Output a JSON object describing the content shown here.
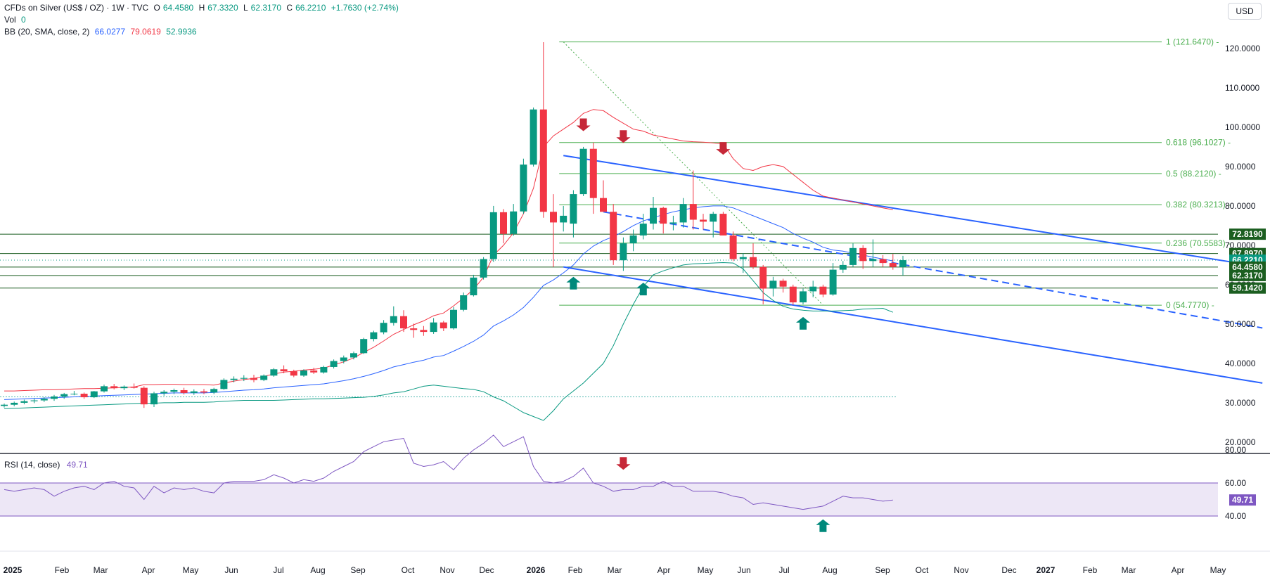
{
  "header": {
    "symbol": "CFDs on Silver (US$ / OZ) · 1W · TVC",
    "o_label": "O",
    "o": "64.4580",
    "h_label": "H",
    "h": "67.3320",
    "l_label": "L",
    "l": "62.3170",
    "c_label": "C",
    "c": "66.2210",
    "change": "+1.7630 (+2.74%)",
    "vol_label": "Vol",
    "vol": "0",
    "bb_label": "BB (20, SMA, close, 2)",
    "bb_basis": "66.0277",
    "bb_upper": "79.0619",
    "bb_lower": "52.9936",
    "currency_button": "USD"
  },
  "colors": {
    "up": "#089981",
    "down": "#f23645",
    "bb_basis": "#2962ff",
    "bb_upper": "#f23645",
    "bb_lower": "#089981",
    "channel": "#2962ff",
    "fib": "#4caf50",
    "rsi": "#7e57c2",
    "rsi_band": "#ede7f6",
    "level_box": "#1b5e20"
  },
  "chart_data": [
    {
      "type": "candlestick",
      "yaxis_ticks": [
        120,
        110,
        100,
        90,
        80,
        70,
        60,
        50,
        40,
        30,
        20
      ],
      "ylim": [
        15,
        125
      ],
      "x_ticks": [
        "2025",
        "Feb",
        "Mar",
        "Apr",
        "May",
        "Jun",
        "Jul",
        "Aug",
        "Sep",
        "Oct",
        "Nov",
        "Dec",
        "2026",
        "Feb",
        "Mar",
        "Apr",
        "May",
        "Jun",
        "Jul",
        "Aug",
        "Sep",
        "Oct",
        "Nov",
        "Dec",
        "2027",
        "Feb",
        "Mar",
        "Apr",
        "May"
      ],
      "candles": [
        {
          "o": 29.2,
          "h": 29.8,
          "l": 28.8,
          "c": 29.5
        },
        {
          "o": 29.5,
          "h": 30.3,
          "l": 29.1,
          "c": 30.0
        },
        {
          "o": 30.0,
          "h": 30.8,
          "l": 29.6,
          "c": 30.4
        },
        {
          "o": 30.4,
          "h": 31.1,
          "l": 29.9,
          "c": 30.6
        },
        {
          "o": 30.6,
          "h": 31.4,
          "l": 30.2,
          "c": 31.0
        },
        {
          "o": 31.0,
          "h": 32.0,
          "l": 30.5,
          "c": 31.6
        },
        {
          "o": 31.6,
          "h": 32.5,
          "l": 31.0,
          "c": 32.2
        },
        {
          "o": 32.2,
          "h": 33.0,
          "l": 31.9,
          "c": 32.3
        },
        {
          "o": 32.3,
          "h": 32.6,
          "l": 31.0,
          "c": 31.4
        },
        {
          "o": 31.4,
          "h": 33.0,
          "l": 31.2,
          "c": 32.9
        },
        {
          "o": 32.9,
          "h": 34.6,
          "l": 32.6,
          "c": 34.2
        },
        {
          "o": 34.2,
          "h": 34.8,
          "l": 33.4,
          "c": 33.7
        },
        {
          "o": 33.7,
          "h": 34.4,
          "l": 33.2,
          "c": 34.1
        },
        {
          "o": 34.1,
          "h": 34.9,
          "l": 33.6,
          "c": 33.8
        },
        {
          "o": 33.8,
          "h": 34.2,
          "l": 28.7,
          "c": 29.6
        },
        {
          "o": 29.6,
          "h": 32.8,
          "l": 28.9,
          "c": 32.4
        },
        {
          "o": 32.4,
          "h": 33.2,
          "l": 31.8,
          "c": 32.8
        },
        {
          "o": 32.8,
          "h": 33.6,
          "l": 32.2,
          "c": 33.2
        },
        {
          "o": 33.2,
          "h": 33.8,
          "l": 32.1,
          "c": 32.5
        },
        {
          "o": 32.5,
          "h": 33.4,
          "l": 32.0,
          "c": 32.9
        },
        {
          "o": 32.9,
          "h": 33.5,
          "l": 32.2,
          "c": 32.6
        },
        {
          "o": 32.6,
          "h": 33.8,
          "l": 32.2,
          "c": 33.5
        },
        {
          "o": 33.5,
          "h": 36.2,
          "l": 33.3,
          "c": 35.8
        },
        {
          "o": 35.8,
          "h": 36.7,
          "l": 35.2,
          "c": 36.1
        },
        {
          "o": 36.1,
          "h": 37.0,
          "l": 35.5,
          "c": 36.3
        },
        {
          "o": 36.3,
          "h": 37.1,
          "l": 35.2,
          "c": 35.8
        },
        {
          "o": 35.8,
          "h": 37.2,
          "l": 35.5,
          "c": 36.9
        },
        {
          "o": 36.9,
          "h": 38.8,
          "l": 36.6,
          "c": 38.5
        },
        {
          "o": 38.5,
          "h": 39.5,
          "l": 37.5,
          "c": 38.0
        },
        {
          "o": 38.0,
          "h": 38.4,
          "l": 36.5,
          "c": 36.9
        },
        {
          "o": 36.9,
          "h": 38.5,
          "l": 36.6,
          "c": 38.2
        },
        {
          "o": 38.2,
          "h": 38.9,
          "l": 37.3,
          "c": 37.7
        },
        {
          "o": 37.7,
          "h": 39.4,
          "l": 37.4,
          "c": 39.1
        },
        {
          "o": 39.1,
          "h": 41.0,
          "l": 38.7,
          "c": 40.6
        },
        {
          "o": 40.6,
          "h": 42.0,
          "l": 40.0,
          "c": 41.5
        },
        {
          "o": 41.5,
          "h": 43.0,
          "l": 41.0,
          "c": 42.6
        },
        {
          "o": 42.6,
          "h": 46.5,
          "l": 42.4,
          "c": 46.2
        },
        {
          "o": 46.2,
          "h": 48.3,
          "l": 45.6,
          "c": 47.9
        },
        {
          "o": 47.9,
          "h": 51.0,
          "l": 47.4,
          "c": 50.3
        },
        {
          "o": 50.3,
          "h": 54.5,
          "l": 49.6,
          "c": 52.0
        },
        {
          "o": 52.0,
          "h": 53.5,
          "l": 48.0,
          "c": 48.9
        },
        {
          "o": 48.9,
          "h": 50.1,
          "l": 46.5,
          "c": 48.5
        },
        {
          "o": 48.5,
          "h": 49.5,
          "l": 47.0,
          "c": 48.0
        },
        {
          "o": 48.0,
          "h": 51.5,
          "l": 47.5,
          "c": 50.4
        },
        {
          "o": 50.4,
          "h": 50.8,
          "l": 48.2,
          "c": 48.9
        },
        {
          "o": 48.9,
          "h": 54.3,
          "l": 48.6,
          "c": 53.6
        },
        {
          "o": 53.6,
          "h": 58.0,
          "l": 53.2,
          "c": 57.3
        },
        {
          "o": 57.3,
          "h": 62.5,
          "l": 57.0,
          "c": 61.8
        },
        {
          "o": 61.8,
          "h": 67.0,
          "l": 61.3,
          "c": 66.5
        },
        {
          "o": 66.5,
          "h": 80.0,
          "l": 65.8,
          "c": 78.4
        },
        {
          "o": 78.4,
          "h": 79.2,
          "l": 70.5,
          "c": 72.9
        },
        {
          "o": 72.9,
          "h": 80.5,
          "l": 72.4,
          "c": 78.6
        },
        {
          "o": 78.6,
          "h": 92.0,
          "l": 78.0,
          "c": 90.5
        },
        {
          "o": 90.5,
          "h": 105.0,
          "l": 90.0,
          "c": 104.5
        },
        {
          "o": 104.5,
          "h": 121.6,
          "l": 77.0,
          "c": 78.5
        },
        {
          "o": 78.5,
          "h": 83.0,
          "l": 64.5,
          "c": 75.8
        },
        {
          "o": 75.8,
          "h": 80.0,
          "l": 73.5,
          "c": 77.5
        },
        {
          "o": 75.5,
          "h": 84.0,
          "l": 72.0,
          "c": 83.0
        },
        {
          "o": 83.0,
          "h": 95.0,
          "l": 82.5,
          "c": 94.5
        },
        {
          "o": 94.5,
          "h": 96.1,
          "l": 78.0,
          "c": 82.0
        },
        {
          "o": 82.0,
          "h": 86.5,
          "l": 79.5,
          "c": 78.5
        },
        {
          "o": 78.5,
          "h": 80.5,
          "l": 65.0,
          "c": 66.2
        },
        {
          "o": 66.2,
          "h": 72.0,
          "l": 63.5,
          "c": 70.5
        },
        {
          "o": 70.5,
          "h": 74.0,
          "l": 68.5,
          "c": 72.5
        },
        {
          "o": 72.5,
          "h": 78.0,
          "l": 71.5,
          "c": 75.5
        },
        {
          "o": 75.5,
          "h": 82.3,
          "l": 74.0,
          "c": 79.5
        },
        {
          "o": 79.5,
          "h": 79.8,
          "l": 73.0,
          "c": 75.5
        },
        {
          "o": 75.5,
          "h": 77.5,
          "l": 73.8,
          "c": 75.8
        },
        {
          "o": 75.8,
          "h": 82.0,
          "l": 74.5,
          "c": 80.5
        },
        {
          "o": 80.5,
          "h": 89.0,
          "l": 74.0,
          "c": 76.5
        },
        {
          "o": 76.5,
          "h": 78.0,
          "l": 74.0,
          "c": 76.0
        },
        {
          "o": 76.0,
          "h": 78.5,
          "l": 72.0,
          "c": 78.0
        },
        {
          "o": 78.0,
          "h": 78.5,
          "l": 73.0,
          "c": 72.5
        },
        {
          "o": 72.5,
          "h": 73.5,
          "l": 66.0,
          "c": 66.5
        },
        {
          "o": 66.5,
          "h": 68.0,
          "l": 63.0,
          "c": 67.0
        },
        {
          "o": 67.0,
          "h": 70.5,
          "l": 64.0,
          "c": 64.5
        },
        {
          "o": 64.5,
          "h": 65.0,
          "l": 55.0,
          "c": 59.0
        },
        {
          "o": 59.0,
          "h": 62.0,
          "l": 57.0,
          "c": 61.0
        },
        {
          "o": 61.0,
          "h": 61.5,
          "l": 58.0,
          "c": 59.5
        },
        {
          "o": 59.5,
          "h": 60.0,
          "l": 54.8,
          "c": 55.5
        },
        {
          "o": 55.5,
          "h": 59.0,
          "l": 55.0,
          "c": 58.3
        },
        {
          "o": 58.3,
          "h": 61.0,
          "l": 56.8,
          "c": 59.5
        },
        {
          "o": 59.5,
          "h": 60.0,
          "l": 56.8,
          "c": 57.5
        },
        {
          "o": 57.5,
          "h": 65.5,
          "l": 57.2,
          "c": 63.8
        },
        {
          "o": 63.8,
          "h": 66.0,
          "l": 63.0,
          "c": 65.0
        },
        {
          "o": 65.0,
          "h": 70.5,
          "l": 64.5,
          "c": 69.3
        },
        {
          "o": 69.3,
          "h": 70.0,
          "l": 64.0,
          "c": 66.0
        },
        {
          "o": 66.0,
          "h": 71.5,
          "l": 64.5,
          "c": 66.5
        },
        {
          "o": 66.5,
          "h": 67.5,
          "l": 64.5,
          "c": 65.5
        },
        {
          "o": 65.5,
          "h": 67.8,
          "l": 63.8,
          "c": 64.5
        },
        {
          "o": 64.458,
          "h": 67.332,
          "l": 62.317,
          "c": 66.221
        }
      ],
      "bb_upper": [
        33.0,
        33.0,
        33.1,
        33.2,
        33.3,
        33.3,
        33.4,
        33.5,
        33.6,
        33.6,
        33.7,
        33.8,
        33.9,
        34.0,
        34.6,
        34.6,
        34.7,
        34.7,
        34.6,
        34.6,
        34.6,
        34.5,
        35.0,
        35.5,
        35.9,
        36.2,
        36.7,
        37.3,
        37.8,
        38.0,
        38.3,
        38.5,
        38.8,
        39.6,
        40.4,
        41.4,
        42.8,
        44.1,
        45.7,
        47.4,
        48.6,
        49.8,
        50.8,
        52.1,
        52.8,
        54.6,
        56.6,
        58.8,
        61.9,
        67.5,
        70.0,
        73.2,
        78.0,
        84.5,
        95.0,
        97.8,
        99.5,
        101.2,
        103.5,
        104.5,
        104.2,
        102.5,
        101.0,
        99.5,
        99.0,
        98.0,
        97.5,
        97.0,
        96.5,
        96.3,
        96.2,
        96.0,
        95.8,
        92.0,
        89.5,
        89.0,
        90.0,
        90.5,
        90.0,
        88.0,
        86.0,
        84.0,
        82.5,
        82.0,
        81.5,
        81.0,
        80.5,
        80.0,
        79.5,
        79.06
      ],
      "bb_basis": [
        30.8,
        30.9,
        31.0,
        31.1,
        31.2,
        31.3,
        31.4,
        31.5,
        31.6,
        31.7,
        31.8,
        31.9,
        32.0,
        32.1,
        32.2,
        32.3,
        32.4,
        32.5,
        32.5,
        32.5,
        32.5,
        32.6,
        32.8,
        33.0,
        33.2,
        33.3,
        33.5,
        33.8,
        34.0,
        34.2,
        34.4,
        34.6,
        34.8,
        35.2,
        35.6,
        36.1,
        36.7,
        37.4,
        38.2,
        39.1,
        39.7,
        40.3,
        40.8,
        41.6,
        42.0,
        43.1,
        44.3,
        45.6,
        47.2,
        49.5,
        50.8,
        52.3,
        54.2,
        56.8,
        59.8,
        61.2,
        63.0,
        65.0,
        67.8,
        69.8,
        71.2,
        72.2,
        73.5,
        75.0,
        76.2,
        77.0,
        77.8,
        78.5,
        79.0,
        79.5,
        79.8,
        80.0,
        80.0,
        79.5,
        78.5,
        77.5,
        76.5,
        75.5,
        74.5,
        73.0,
        71.8,
        70.8,
        69.5,
        68.8,
        68.5,
        68.0,
        67.5,
        67.0,
        66.5,
        66.03
      ],
      "bb_lower": [
        28.5,
        28.6,
        28.7,
        28.8,
        28.9,
        29.0,
        29.1,
        29.2,
        29.3,
        29.4,
        29.5,
        29.6,
        29.7,
        29.8,
        29.9,
        29.9,
        30.0,
        30.0,
        30.1,
        30.1,
        30.1,
        30.2,
        30.4,
        30.5,
        30.6,
        30.6,
        30.6,
        30.6,
        30.7,
        30.8,
        30.9,
        31.0,
        31.0,
        31.1,
        31.2,
        31.3,
        31.4,
        31.6,
        32.0,
        32.5,
        32.8,
        33.5,
        34.2,
        34.5,
        34.2,
        33.9,
        33.6,
        33.4,
        32.8,
        31.5,
        30.5,
        29.0,
        27.5,
        26.5,
        25.5,
        28.0,
        31.0,
        33.0,
        35.0,
        37.5,
        40.0,
        44.5,
        50.0,
        55.0,
        59.5,
        62.5,
        63.5,
        64.3,
        65.0,
        65.3,
        65.4,
        65.5,
        65.6,
        65.5,
        64.0,
        61.0,
        58.0,
        56.0,
        54.5,
        53.8,
        53.5,
        53.3,
        53.3,
        53.3,
        53.4,
        53.5,
        53.8,
        53.9,
        54.0,
        52.99
      ],
      "fib_levels": [
        {
          "ratio": "1",
          "value": 121.647,
          "label": "1 (121.6470)"
        },
        {
          "ratio": "0.618",
          "value": 96.1027,
          "label": "0.618 (96.1027)"
        },
        {
          "ratio": "0.5",
          "value": 88.212,
          "label": "0.5 (88.2120)"
        },
        {
          "ratio": "0.382",
          "value": 80.3213,
          "label": "0.382 (80.3213)"
        },
        {
          "ratio": "0.236",
          "value": 70.5583,
          "label": "0.236 (70.5583)"
        },
        {
          "ratio": "0",
          "value": 54.777,
          "label": "0 (54.7770)"
        }
      ],
      "horizontal_levels": [
        72.819,
        67.897,
        64.458,
        62.317,
        59.142
      ],
      "price_labels": [
        "72.8190",
        "67.8970",
        "66.2210",
        "64.4580",
        "62.3170",
        "59.1420"
      ],
      "reference_line": 31.5,
      "channel_upper": [
        [
          56,
          92.8
        ],
        [
          126,
          64.5
        ]
      ],
      "channel_lower": [
        [
          56,
          64.5
        ],
        [
          126,
          35.0
        ]
      ],
      "channel_mid": [
        [
          60,
          78.5
        ],
        [
          126,
          49.0
        ]
      ],
      "signals": [
        {
          "type": "down",
          "bar": 58,
          "value": 99.0
        },
        {
          "type": "down",
          "bar": 62,
          "value": 96.0
        },
        {
          "type": "down",
          "bar": 72,
          "value": 93.0
        },
        {
          "type": "up",
          "bar": 57,
          "value": 62.0
        },
        {
          "type": "up",
          "bar": 64,
          "value": 60.5
        },
        {
          "type": "up",
          "bar": 80,
          "value": 51.8
        }
      ]
    },
    {
      "type": "line",
      "title": "RSI (14, close)",
      "current": "49.71",
      "yaxis_ticks": [
        80,
        60,
        40
      ],
      "ylim": [
        35,
        95
      ],
      "band": [
        40,
        60
      ],
      "values": [
        56,
        55,
        56,
        57,
        56,
        52,
        55,
        57,
        58,
        56,
        60,
        61,
        58,
        57,
        50,
        58,
        54,
        57,
        56,
        57,
        55,
        54,
        60,
        61,
        61,
        61,
        62,
        65,
        63,
        60,
        62,
        61,
        63,
        67,
        70,
        73,
        79,
        82,
        85,
        86,
        87,
        72,
        70,
        71,
        73,
        68,
        75,
        80,
        84,
        89,
        82,
        85,
        88,
        70,
        61,
        60,
        61,
        64,
        69,
        60,
        58,
        55,
        56,
        56,
        58,
        58,
        61,
        58,
        58,
        55,
        55,
        55,
        54,
        52,
        51,
        47,
        48,
        47,
        46,
        45,
        44,
        45,
        46,
        49,
        52,
        51,
        51,
        50,
        49,
        49.71
      ],
      "signals": [
        {
          "type": "down",
          "bar": 62,
          "value": 68
        },
        {
          "type": "up",
          "bar": 82,
          "value": 38
        }
      ]
    }
  ]
}
